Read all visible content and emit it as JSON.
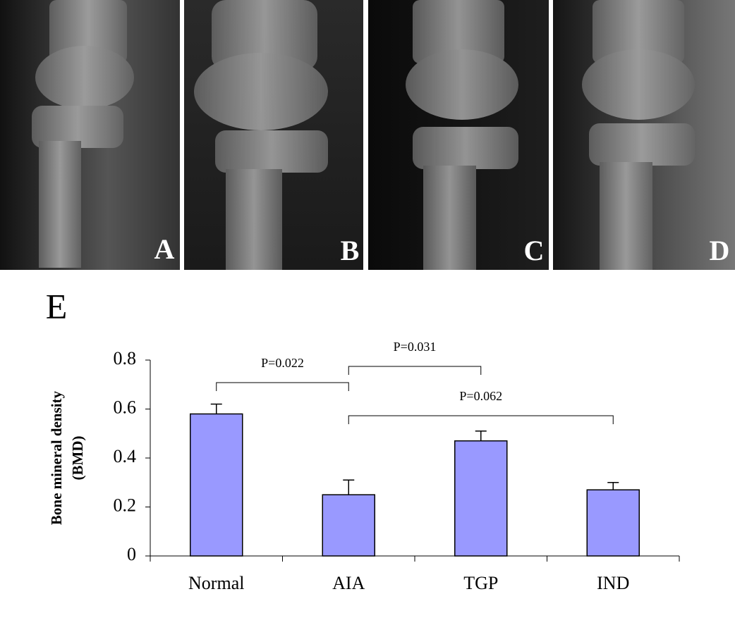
{
  "panels": [
    "A",
    "B",
    "C",
    "D"
  ],
  "chart_label": "E",
  "chart_data": {
    "type": "bar",
    "y_label": [
      "Bone mineral density",
      "(BMD)"
    ],
    "categories": [
      "Normal",
      "AIA",
      "TGP",
      "IND"
    ],
    "values": [
      0.58,
      0.25,
      0.47,
      0.27
    ],
    "errors": [
      0.04,
      0.06,
      0.04,
      0.03
    ],
    "color": "#9999ff",
    "ylim": [
      0,
      0.8
    ],
    "yticks": [
      0,
      0.2,
      0.4,
      0.6,
      0.8
    ],
    "comparisons": [
      {
        "from": "Normal",
        "to": "AIA",
        "label": "P=0.022"
      },
      {
        "from": "AIA",
        "to": "TGP",
        "label": "P=0.031"
      },
      {
        "from": "AIA",
        "to": "IND",
        "label": "P=0.062"
      }
    ]
  }
}
